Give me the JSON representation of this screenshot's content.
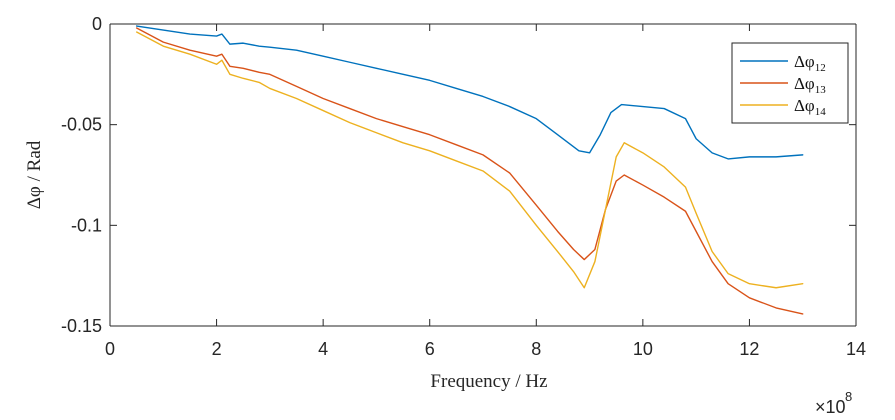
{
  "chart_data": {
    "type": "line",
    "title": "",
    "xlabel": "Frequency / Hz",
    "ylabel": "Δφ / Rad",
    "x_multiplier_label": "×10",
    "x_multiplier_exponent": "8",
    "xlim": [
      0,
      14
    ],
    "ylim": [
      -0.15,
      0
    ],
    "xticks": [
      0,
      2,
      4,
      6,
      8,
      10,
      12,
      14
    ],
    "yticks": [
      0,
      -0.05,
      -0.1,
      -0.15
    ],
    "xtick_labels": [
      "0",
      "2",
      "4",
      "6",
      "8",
      "10",
      "12",
      "14"
    ],
    "ytick_labels": [
      "0",
      "-0.05",
      "-0.1",
      "-0.15"
    ],
    "grid": false,
    "legend_position": "top-right",
    "series": [
      {
        "name": "Δφ12",
        "legend_base": "Δφ",
        "legend_sub": "12",
        "color": "#0072BD",
        "points": [
          [
            0.5,
            -0.001
          ],
          [
            1.0,
            -0.003
          ],
          [
            1.5,
            -0.005
          ],
          [
            2.0,
            -0.006
          ],
          [
            2.1,
            -0.005
          ],
          [
            2.25,
            -0.01
          ],
          [
            2.5,
            -0.0095
          ],
          [
            2.8,
            -0.011
          ],
          [
            3.0,
            -0.0115
          ],
          [
            3.5,
            -0.013
          ],
          [
            4.0,
            -0.016
          ],
          [
            4.5,
            -0.019
          ],
          [
            5.0,
            -0.022
          ],
          [
            5.5,
            -0.025
          ],
          [
            6.0,
            -0.028
          ],
          [
            6.5,
            -0.032
          ],
          [
            7.0,
            -0.036
          ],
          [
            7.5,
            -0.041
          ],
          [
            8.0,
            -0.047
          ],
          [
            8.4,
            -0.055
          ],
          [
            8.8,
            -0.063
          ],
          [
            9.0,
            -0.064
          ],
          [
            9.2,
            -0.055
          ],
          [
            9.4,
            -0.044
          ],
          [
            9.6,
            -0.04
          ],
          [
            10.0,
            -0.041
          ],
          [
            10.4,
            -0.042
          ],
          [
            10.8,
            -0.047
          ],
          [
            11.0,
            -0.057
          ],
          [
            11.3,
            -0.064
          ],
          [
            11.6,
            -0.067
          ],
          [
            12.0,
            -0.066
          ],
          [
            12.5,
            -0.066
          ],
          [
            13.0,
            -0.065
          ]
        ]
      },
      {
        "name": "Δφ13",
        "legend_base": "Δφ",
        "legend_sub": "13",
        "color": "#D95319",
        "points": [
          [
            0.5,
            -0.002
          ],
          [
            1.0,
            -0.009
          ],
          [
            1.5,
            -0.013
          ],
          [
            2.0,
            -0.016
          ],
          [
            2.1,
            -0.015
          ],
          [
            2.25,
            -0.021
          ],
          [
            2.5,
            -0.022
          ],
          [
            2.8,
            -0.024
          ],
          [
            3.0,
            -0.025
          ],
          [
            3.5,
            -0.031
          ],
          [
            4.0,
            -0.037
          ],
          [
            4.5,
            -0.042
          ],
          [
            5.0,
            -0.047
          ],
          [
            5.5,
            -0.051
          ],
          [
            6.0,
            -0.055
          ],
          [
            6.5,
            -0.06
          ],
          [
            7.0,
            -0.065
          ],
          [
            7.5,
            -0.074
          ],
          [
            8.0,
            -0.09
          ],
          [
            8.4,
            -0.103
          ],
          [
            8.7,
            -0.112
          ],
          [
            8.9,
            -0.117
          ],
          [
            9.1,
            -0.112
          ],
          [
            9.3,
            -0.092
          ],
          [
            9.5,
            -0.078
          ],
          [
            9.65,
            -0.075
          ],
          [
            10.0,
            -0.08
          ],
          [
            10.4,
            -0.086
          ],
          [
            10.8,
            -0.093
          ],
          [
            11.0,
            -0.103
          ],
          [
            11.3,
            -0.118
          ],
          [
            11.6,
            -0.129
          ],
          [
            12.0,
            -0.136
          ],
          [
            12.5,
            -0.141
          ],
          [
            13.0,
            -0.144
          ]
        ]
      },
      {
        "name": "Δφ14",
        "legend_base": "Δφ",
        "legend_sub": "14",
        "color": "#EDB120",
        "points": [
          [
            0.5,
            -0.004
          ],
          [
            1.0,
            -0.011
          ],
          [
            1.5,
            -0.015
          ],
          [
            2.0,
            -0.02
          ],
          [
            2.1,
            -0.018
          ],
          [
            2.25,
            -0.025
          ],
          [
            2.5,
            -0.027
          ],
          [
            2.8,
            -0.029
          ],
          [
            3.0,
            -0.032
          ],
          [
            3.5,
            -0.037
          ],
          [
            4.0,
            -0.043
          ],
          [
            4.5,
            -0.049
          ],
          [
            5.0,
            -0.054
          ],
          [
            5.5,
            -0.059
          ],
          [
            6.0,
            -0.063
          ],
          [
            6.5,
            -0.068
          ],
          [
            7.0,
            -0.073
          ],
          [
            7.5,
            -0.083
          ],
          [
            8.0,
            -0.1
          ],
          [
            8.4,
            -0.113
          ],
          [
            8.7,
            -0.123
          ],
          [
            8.9,
            -0.131
          ],
          [
            9.1,
            -0.118
          ],
          [
            9.3,
            -0.092
          ],
          [
            9.5,
            -0.066
          ],
          [
            9.65,
            -0.059
          ],
          [
            10.0,
            -0.064
          ],
          [
            10.4,
            -0.071
          ],
          [
            10.8,
            -0.081
          ],
          [
            11.0,
            -0.094
          ],
          [
            11.3,
            -0.113
          ],
          [
            11.6,
            -0.124
          ],
          [
            12.0,
            -0.129
          ],
          [
            12.5,
            -0.131
          ],
          [
            13.0,
            -0.129
          ]
        ]
      }
    ]
  }
}
